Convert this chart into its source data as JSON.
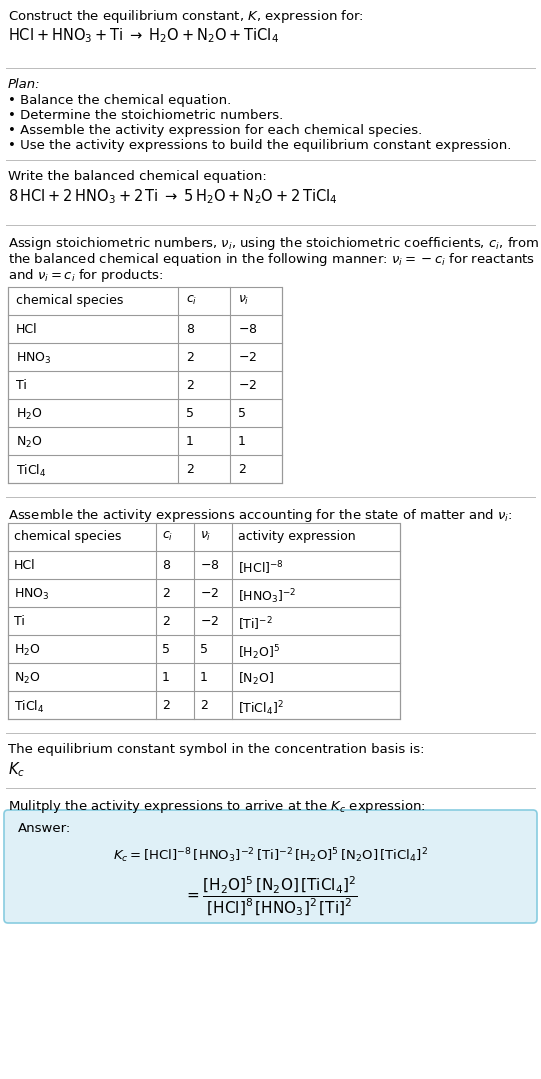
{
  "bg_color": "#ffffff",
  "text_color": "#000000",
  "light_blue_bg": "#dff0f7",
  "table_border_color": "#999999",
  "title_line1": "Construct the equilibrium constant, $K$, expression for:",
  "title_line2": "$\\mathrm{HCl + HNO_3 + Ti} \\;\\rightarrow\\; \\mathrm{H_2O + N_2O + TiCl_4}$",
  "plan_header": "Plan:",
  "plan_items": [
    "Balance the chemical equation.",
    "Determine the stoichiometric numbers.",
    "Assemble the activity expression for each chemical species.",
    "Use the activity expressions to build the equilibrium constant expression."
  ],
  "balanced_header": "Write the balanced chemical equation:",
  "balanced_eq": "$\\mathrm{8\\,HCl + 2\\,HNO_3 + 2\\,Ti} \\;\\rightarrow\\; \\mathrm{5\\,H_2O + N_2O + 2\\,TiCl_4}$",
  "stoich_header_parts": [
    "Assign stoichiometric numbers, $\\nu_i$, using the stoichiometric coefficients, $c_i$, from",
    "the balanced chemical equation in the following manner: $\\nu_i = -c_i$ for reactants",
    "and $\\nu_i = c_i$ for products:"
  ],
  "table1_cols": [
    "chemical species",
    "$c_i$",
    "$\\nu_i$"
  ],
  "table1_rows": [
    [
      "HCl",
      "8",
      "$-8$"
    ],
    [
      "$\\mathrm{HNO_3}$",
      "2",
      "$-2$"
    ],
    [
      "Ti",
      "2",
      "$-2$"
    ],
    [
      "$\\mathrm{H_2O}$",
      "5",
      "5"
    ],
    [
      "$\\mathrm{N_2O}$",
      "1",
      "1"
    ],
    [
      "$\\mathrm{TiCl_4}$",
      "2",
      "2"
    ]
  ],
  "activity_header": "Assemble the activity expressions accounting for the state of matter and $\\nu_i$:",
  "table2_cols": [
    "chemical species",
    "$c_i$",
    "$\\nu_i$",
    "activity expression"
  ],
  "table2_rows": [
    [
      "HCl",
      "8",
      "$-8$",
      "$[\\mathrm{HCl}]^{-8}$"
    ],
    [
      "$\\mathrm{HNO_3}$",
      "2",
      "$-2$",
      "$[\\mathrm{HNO_3}]^{-2}$"
    ],
    [
      "Ti",
      "2",
      "$-2$",
      "$[\\mathrm{Ti}]^{-2}$"
    ],
    [
      "$\\mathrm{H_2O}$",
      "5",
      "5",
      "$[\\mathrm{H_2O}]^{5}$"
    ],
    [
      "$\\mathrm{N_2O}$",
      "1",
      "1",
      "$[\\mathrm{N_2O}]$"
    ],
    [
      "$\\mathrm{TiCl_4}$",
      "2",
      "2",
      "$[\\mathrm{TiCl_4}]^{2}$"
    ]
  ],
  "kc_header": "The equilibrium constant symbol in the concentration basis is:",
  "kc_symbol": "$K_c$",
  "multiply_header": "Mulitply the activity expressions to arrive at the $K_c$ expression:",
  "answer_label": "Answer:",
  "answer_eq1": "$K_c = [\\mathrm{HCl}]^{-8}\\,[\\mathrm{HNO_3}]^{-2}\\,[\\mathrm{Ti}]^{-2}\\,[\\mathrm{H_2O}]^{5}\\,[\\mathrm{N_2O}]\\,[\\mathrm{TiCl_4}]^{2}$",
  "answer_eq2": "$= \\dfrac{[\\mathrm{H_2O}]^{5}\\,[\\mathrm{N_2O}]\\,[\\mathrm{TiCl_4}]^{2}}{[\\mathrm{HCl}]^{8}\\,[\\mathrm{HNO_3}]^{2}\\,[\\mathrm{Ti}]^{2}}$"
}
